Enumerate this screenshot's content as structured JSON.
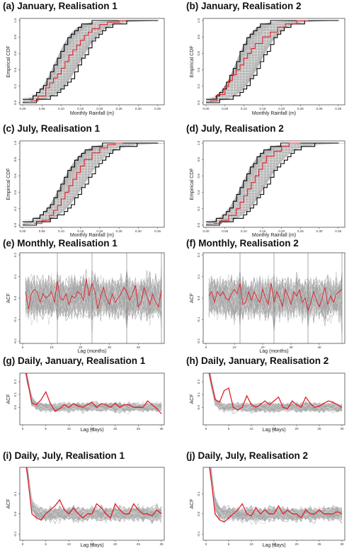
{
  "colors": {
    "ensemble": "#a6a6a6",
    "envelope": "#000000",
    "observed": "#e0202a",
    "frame": "#333333"
  },
  "chart_data": [
    {
      "id": "a",
      "type": "line",
      "kind": "cdf",
      "title": "(a) January, Realisation 1",
      "xlabel": "Monthly Rainfall (m)",
      "ylabel": "Empirical CDF",
      "xlim": [
        0,
        0.36
      ],
      "ylim": [
        0,
        1
      ],
      "xticks": [
        "0.00",
        "0.05",
        "0.10",
        "0.15",
        "0.20",
        "0.25",
        "0.30",
        "0.35"
      ],
      "yticks": [
        "0.0",
        "0.2",
        "0.4",
        "0.6",
        "0.8",
        "1.0"
      ],
      "ensemble_median": 0.115,
      "envelope_lower_median": 0.085,
      "envelope_upper_median": 0.15,
      "series": [
        {
          "x": [
            0.02,
            0.04,
            0.06,
            0.07,
            0.08,
            0.09,
            0.1,
            0.11,
            0.12,
            0.13,
            0.14,
            0.15,
            0.16,
            0.17,
            0.18,
            0.2,
            0.22,
            0.25,
            0.27
          ],
          "y": [
            0.02,
            0.08,
            0.18,
            0.24,
            0.3,
            0.35,
            0.42,
            0.5,
            0.58,
            0.64,
            0.7,
            0.76,
            0.82,
            0.86,
            0.9,
            0.95,
            0.98,
            1.0,
            1.0
          ]
        }
      ]
    },
    {
      "id": "b",
      "type": "line",
      "kind": "cdf",
      "title": "(b) January, Realisation 2",
      "xlabel": "Monthly Rainfall (m)",
      "ylabel": "Empirical CDF",
      "xlim": [
        0,
        0.36
      ],
      "ylim": [
        0,
        1
      ],
      "xticks": [
        "0.00",
        "0.05",
        "0.10",
        "0.15",
        "0.20",
        "0.25",
        "0.30",
        "0.35"
      ],
      "yticks": [
        "0.0",
        "0.2",
        "0.4",
        "0.6",
        "0.8",
        "1.0"
      ],
      "ensemble_median": 0.11,
      "envelope_lower_median": 0.08,
      "envelope_upper_median": 0.145,
      "series": [
        {
          "x": [
            0.01,
            0.03,
            0.05,
            0.06,
            0.07,
            0.08,
            0.09,
            0.1,
            0.11,
            0.12,
            0.13,
            0.15,
            0.17,
            0.19,
            0.21,
            0.24,
            0.27
          ],
          "y": [
            0.02,
            0.1,
            0.2,
            0.27,
            0.34,
            0.4,
            0.46,
            0.54,
            0.6,
            0.66,
            0.72,
            0.8,
            0.86,
            0.92,
            0.96,
            1.0,
            1.0
          ]
        }
      ]
    },
    {
      "id": "c",
      "type": "line",
      "kind": "cdf",
      "title": "(c) July, Realisation 1",
      "xlabel": "Monthly Rainfall (m)",
      "ylabel": "Empirical CDF",
      "xlim": [
        0,
        0.36
      ],
      "ylim": [
        0,
        1
      ],
      "xticks": [
        "0.00",
        "0.05",
        "0.10",
        "0.15",
        "0.20",
        "0.25",
        "0.30",
        "0.35"
      ],
      "yticks": [
        "0.0",
        "0.2",
        "0.4",
        "0.6",
        "0.8",
        "1.0"
      ],
      "ensemble_median": 0.13,
      "envelope_lower_median": 0.1,
      "envelope_upper_median": 0.16,
      "series": [
        {
          "x": [
            0.03,
            0.05,
            0.07,
            0.08,
            0.09,
            0.1,
            0.11,
            0.12,
            0.13,
            0.14,
            0.15,
            0.16,
            0.18,
            0.2,
            0.22,
            0.24,
            0.26
          ],
          "y": [
            0.02,
            0.06,
            0.12,
            0.18,
            0.24,
            0.32,
            0.4,
            0.48,
            0.56,
            0.64,
            0.72,
            0.8,
            0.88,
            0.94,
            0.98,
            1.0,
            1.0
          ]
        }
      ]
    },
    {
      "id": "d",
      "type": "line",
      "kind": "cdf",
      "title": "(d) July, Realisation 2",
      "xlabel": "Monthly Rainfall (m)",
      "ylabel": "Empirical CDF",
      "xlim": [
        0,
        0.36
      ],
      "ylim": [
        0,
        1
      ],
      "xticks": [
        "0.00",
        "0.05",
        "0.10",
        "0.15",
        "0.20",
        "0.25",
        "0.30",
        "0.35"
      ],
      "yticks": [
        "0.0",
        "0.2",
        "0.4",
        "0.6",
        "0.8",
        "1.0"
      ],
      "ensemble_median": 0.125,
      "envelope_lower_median": 0.095,
      "envelope_upper_median": 0.16,
      "series": [
        {
          "x": [
            0.02,
            0.04,
            0.06,
            0.08,
            0.09,
            0.1,
            0.11,
            0.12,
            0.13,
            0.14,
            0.15,
            0.16,
            0.18,
            0.2,
            0.22,
            0.25
          ],
          "y": [
            0.02,
            0.06,
            0.12,
            0.2,
            0.28,
            0.36,
            0.44,
            0.52,
            0.6,
            0.68,
            0.76,
            0.84,
            0.9,
            0.96,
            1.0,
            1.0
          ]
        }
      ]
    },
    {
      "id": "e",
      "type": "line",
      "kind": "acf",
      "title": "(e) Monthly, Realisation 1",
      "xlabel": "Lag (months)",
      "ylabel": "ACF",
      "xlim": [
        0,
        48
      ],
      "ylim": [
        -0.2,
        0.2
      ],
      "xticks": [
        "0",
        "10",
        "20",
        "30",
        "40"
      ],
      "xtick_values": [
        0,
        10,
        20,
        30,
        40
      ],
      "yticks": [
        "-0.2",
        "-0.1",
        "0.0",
        "0.1",
        "0.2"
      ],
      "ytick_values": [
        -0.2,
        -0.1,
        0,
        0.1,
        0.2
      ],
      "band": 0.15,
      "vlines": [
        12,
        24,
        36,
        48
      ],
      "series": [
        {
          "x": [
            1,
            2,
            3,
            4,
            5,
            6,
            7,
            8,
            9,
            10,
            11,
            12,
            13,
            14,
            15,
            16,
            17,
            18,
            19,
            20,
            21,
            22,
            23,
            24,
            25,
            26,
            27,
            28,
            29,
            30,
            31,
            32,
            33,
            34,
            35,
            36,
            37,
            38,
            39,
            40,
            41,
            42,
            43,
            44,
            45,
            46,
            47,
            48
          ],
          "y": [
            0.03,
            -0.05,
            0.02,
            0.04,
            0.03,
            -0.02,
            0.02,
            0.0,
            0.01,
            0.03,
            -0.02,
            0.08,
            0.0,
            -0.01,
            0.02,
            -0.03,
            0.01,
            0.0,
            0.03,
            0.02,
            -0.01,
            0.09,
            0.01,
            0.07,
            0.03,
            -0.05,
            0.01,
            0.05,
            0.0,
            -0.03,
            0.02,
            -0.02,
            0.0,
            0.02,
            0.05,
            0.03,
            -0.01,
            0.02,
            0.06,
            -0.04,
            -0.02,
            0.05,
            0.01,
            -0.03,
            0.02,
            -0.02,
            -0.04,
            0.04
          ]
        }
      ]
    },
    {
      "id": "f",
      "type": "line",
      "kind": "acf",
      "title": "(f) Monthly, Realisation 2",
      "xlabel": "Lag (months)",
      "ylabel": "ACF",
      "xlim": [
        0,
        48
      ],
      "ylim": [
        -0.2,
        0.2
      ],
      "xticks": [
        "0",
        "10",
        "20",
        "30",
        "40"
      ],
      "xtick_values": [
        0,
        10,
        20,
        30,
        40
      ],
      "yticks": [
        "-0.2",
        "-0.1",
        "0.0",
        "0.1",
        "0.2"
      ],
      "ytick_values": [
        -0.2,
        -0.1,
        0,
        0.1,
        0.2
      ],
      "band": 0.15,
      "vlines": [
        12,
        24,
        36,
        48
      ],
      "series": [
        {
          "x": [
            1,
            2,
            3,
            4,
            5,
            6,
            7,
            8,
            9,
            10,
            11,
            12,
            13,
            14,
            15,
            16,
            17,
            18,
            19,
            20,
            21,
            22,
            23,
            24,
            25,
            26,
            27,
            28,
            29,
            30,
            31,
            32,
            33,
            34,
            35,
            36,
            37,
            38,
            39,
            40,
            41,
            42,
            43,
            44,
            45,
            46,
            47,
            48
          ],
          "y": [
            0.01,
            0.03,
            -0.02,
            0.03,
            0.01,
            0.03,
            0.0,
            -0.01,
            0.02,
            0.04,
            0.02,
            0.07,
            -0.03,
            -0.02,
            0.03,
            -0.01,
            0.03,
            0.0,
            -0.02,
            0.04,
            0.0,
            -0.03,
            0.07,
            -0.02,
            0.03,
            0.0,
            -0.04,
            0.04,
            0.01,
            -0.03,
            0.03,
            0.01,
            0.04,
            -0.02,
            0.0,
            -0.06,
            -0.02,
            0.03,
            -0.01,
            -0.04,
            0.0,
            0.05,
            -0.03,
            0.01,
            -0.02,
            0.02,
            0.03,
            0.04
          ]
        }
      ]
    },
    {
      "id": "g",
      "type": "line",
      "kind": "acf",
      "title": "(g) Daily, January, Realisation 1",
      "xlabel": "Lag (days)",
      "ylabel": "ACF",
      "xlim": [
        0,
        30
      ],
      "ylim": [
        -0.12,
        0.25
      ],
      "xticks": [
        "0",
        "5",
        "10",
        "15",
        "20",
        "25",
        "30"
      ],
      "xtick_values": [
        0,
        5,
        10,
        15,
        20,
        25,
        30
      ],
      "yticks": [
        "0.0",
        "0.1",
        "0.2"
      ],
      "ytick_values": [
        0.0,
        0.1,
        0.2
      ],
      "band": 0.06,
      "vlines": [],
      "series": [
        {
          "x": [
            1,
            2,
            3,
            4,
            5,
            6,
            7,
            8,
            9,
            10,
            11,
            12,
            13,
            14,
            15,
            16,
            17,
            18,
            19,
            20,
            21,
            22,
            23,
            24,
            25,
            26,
            27,
            28,
            29,
            30
          ],
          "y": [
            0.22,
            0.03,
            0.02,
            0.06,
            0.12,
            0.03,
            -0.03,
            -0.01,
            0.02,
            0.0,
            0.03,
            0.01,
            0.0,
            0.02,
            0.04,
            0.0,
            0.03,
            0.02,
            0.0,
            0.03,
            0.0,
            0.02,
            0.02,
            0.0,
            0.0,
            0.0,
            0.05,
            0.02,
            -0.01,
            -0.05
          ]
        }
      ]
    },
    {
      "id": "h",
      "type": "line",
      "kind": "acf",
      "title": "(h) Daily, January, Realisation 2",
      "xlabel": "Lag (days)",
      "ylabel": "ACF",
      "xlim": [
        0,
        30
      ],
      "ylim": [
        -0.12,
        0.25
      ],
      "xticks": [
        "0",
        "5",
        "10",
        "15",
        "20",
        "25",
        "30"
      ],
      "xtick_values": [
        0,
        5,
        10,
        15,
        20,
        25,
        30
      ],
      "yticks": [
        "0.0",
        "0.1",
        "0.2"
      ],
      "ytick_values": [
        0.0,
        0.1,
        0.2
      ],
      "band": 0.06,
      "vlines": [],
      "series": [
        {
          "x": [
            1,
            2,
            3,
            4,
            5,
            6,
            7,
            8,
            9,
            10,
            11,
            12,
            13,
            14,
            15,
            16,
            17,
            18,
            19,
            20,
            21,
            22,
            23,
            24,
            25,
            26,
            27,
            28,
            29,
            30
          ],
          "y": [
            0.22,
            0.06,
            0.04,
            0.13,
            0.15,
            0.0,
            -0.02,
            0.0,
            0.09,
            0.02,
            0.0,
            0.02,
            0.05,
            0.02,
            0.05,
            0.08,
            0.0,
            -0.01,
            0.05,
            0.02,
            0.0,
            0.08,
            0.03,
            0.0,
            0.01,
            0.03,
            0.05,
            0.04,
            0.02,
            0.0
          ]
        }
      ]
    },
    {
      "id": "i",
      "type": "line",
      "kind": "acf",
      "title": "(i) Daily, July, Realisation 1",
      "xlabel": "Lag (days)",
      "ylabel": "ACF",
      "xlim": [
        0,
        30
      ],
      "ylim": [
        -0.12,
        0.22
      ],
      "xticks": [
        "0",
        "5",
        "10",
        "15",
        "20",
        "25",
        "30"
      ],
      "xtick_values": [
        0,
        5,
        10,
        15,
        20,
        25,
        30
      ],
      "yticks": [
        "-0.1",
        "0.0",
        "0.1"
      ],
      "ytick_values": [
        -0.1,
        0.0,
        0.1
      ],
      "band": 0.06,
      "vlines": [],
      "series": [
        {
          "x": [
            1,
            2,
            3,
            4,
            5,
            6,
            7,
            8,
            9,
            10,
            11,
            12,
            13,
            14,
            15,
            16,
            17,
            18,
            19,
            20,
            21,
            22,
            23,
            24,
            25,
            26,
            27,
            28,
            29,
            30
          ],
          "y": [
            0.2,
            0.0,
            -0.02,
            -0.03,
            0.0,
            0.02,
            0.04,
            0.07,
            0.02,
            0.0,
            0.03,
            0.0,
            -0.02,
            0.0,
            0.0,
            0.05,
            0.03,
            0.0,
            -0.02,
            0.05,
            0.02,
            0.0,
            0.0,
            0.05,
            0.02,
            0.0,
            0.0,
            -0.01,
            0.02,
            0.0
          ]
        }
      ]
    },
    {
      "id": "j",
      "type": "line",
      "kind": "acf",
      "title": "(j) Daily, July, Realisation 2",
      "xlabel": "Lag (days)",
      "ylabel": "ACF",
      "xlim": [
        0,
        30
      ],
      "ylim": [
        -0.12,
        0.22
      ],
      "xticks": [
        "0",
        "5",
        "10",
        "15",
        "20",
        "25",
        "30"
      ],
      "xtick_values": [
        0,
        5,
        10,
        15,
        20,
        25,
        30
      ],
      "yticks": [
        "-0.1",
        "0.0",
        "0.1"
      ],
      "ytick_values": [
        -0.1,
        0.0,
        0.1
      ],
      "band": 0.06,
      "vlines": [],
      "series": [
        {
          "x": [
            1,
            2,
            3,
            4,
            5,
            6,
            7,
            8,
            9,
            10,
            11,
            12,
            13,
            14,
            15,
            16,
            17,
            18,
            19,
            20,
            21,
            22,
            23,
            24,
            25,
            26,
            27,
            28,
            29,
            30
          ],
          "y": [
            0.2,
            0.0,
            -0.03,
            -0.04,
            -0.02,
            0.0,
            0.02,
            0.05,
            0.0,
            -0.01,
            0.03,
            0.0,
            0.02,
            0.0,
            0.0,
            0.04,
            0.0,
            0.02,
            0.0,
            0.0,
            -0.02,
            0.02,
            0.0,
            0.0,
            0.02,
            0.0,
            0.0,
            0.0,
            0.01,
            0.0
          ]
        }
      ]
    }
  ]
}
